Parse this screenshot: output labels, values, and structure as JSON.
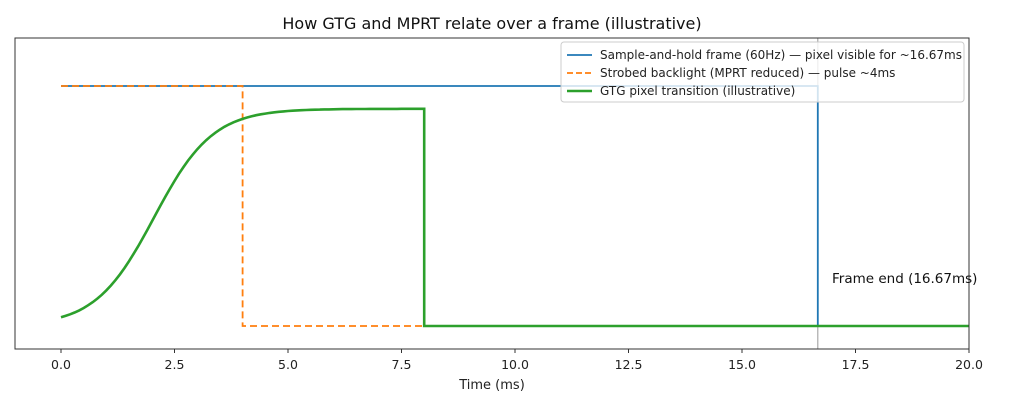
{
  "chart_data": {
    "type": "line",
    "title": "How GTG and MPRT relate over a frame (illustrative)",
    "xlabel": "Time (ms)",
    "ylabel": "",
    "xlim": [
      -1,
      20
    ],
    "ylim": [
      -0.1,
      1.15
    ],
    "xticks": [
      0.0,
      2.5,
      5.0,
      7.5,
      10.0,
      12.5,
      15.0,
      17.5,
      20.0
    ],
    "xtick_labels": [
      "0.0",
      "2.5",
      "5.0",
      "7.5",
      "10.0",
      "12.5",
      "15.0",
      "17.5",
      "20.0"
    ],
    "yticks": [],
    "grid": false,
    "legend_position": "upper right",
    "series": [
      {
        "name": "Sample-and-hold frame (60Hz) — pixel visible for ~16.67ms",
        "color": "#1f77b4",
        "style": "solid",
        "x": [
          0,
          16.67,
          16.67,
          20
        ],
        "y": [
          1.0,
          1.0,
          0.0,
          0.0
        ]
      },
      {
        "name": "Strobed backlight (MPRT reduced) — pulse ~4ms",
        "color": "#ff7f0e",
        "style": "dashed",
        "x": [
          0,
          4,
          4,
          20
        ],
        "y": [
          1.0,
          1.0,
          0.0,
          0.0
        ]
      },
      {
        "name": "GTG pixel transition (illustrative)",
        "color": "#2ca02c",
        "style": "solid",
        "x": [
          0,
          0.5,
          1.0,
          1.5,
          2.0,
          2.5,
          3.0,
          3.5,
          4.0,
          4.5,
          5.0,
          6.0,
          7.0,
          8.0,
          8.0,
          20
        ],
        "y": [
          0.03,
          0.06,
          0.13,
          0.25,
          0.42,
          0.6,
          0.74,
          0.83,
          0.87,
          0.89,
          0.9,
          0.905,
          0.905,
          0.905,
          0.0,
          0.0
        ]
      }
    ],
    "annotations": [
      {
        "text": "Frame end (16.67ms)",
        "x": 17.0,
        "y": 0.2
      }
    ],
    "vlines": [
      {
        "x": 16.67,
        "color": "#999999"
      }
    ]
  }
}
